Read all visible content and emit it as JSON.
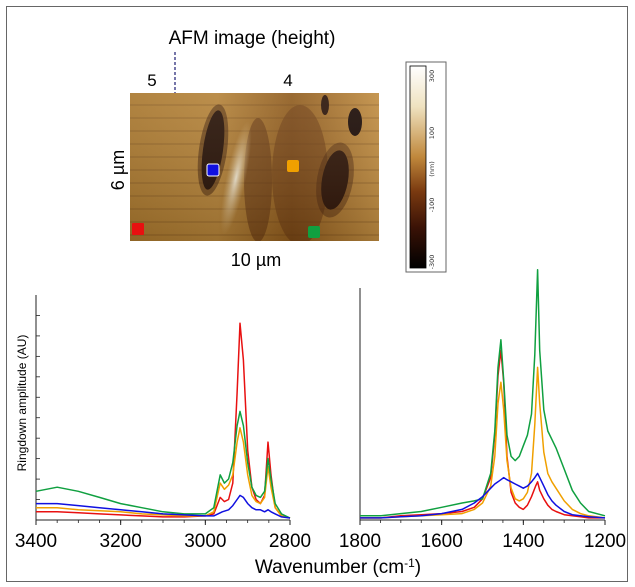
{
  "afm": {
    "title": "AFM image (height)",
    "region_left": "5",
    "region_right": "4",
    "height_label": "6 µm",
    "width_label": "10 µm",
    "colorbar": {
      "ticks": [
        "300",
        "100",
        "-100",
        "-300"
      ],
      "unit": "(nm)"
    },
    "markers": [
      {
        "name": "blue-marker",
        "color": "#1010e0"
      },
      {
        "name": "orange-marker",
        "color": "#f0a000"
      },
      {
        "name": "red-marker",
        "color": "#e81010"
      },
      {
        "name": "green-marker",
        "color": "#10a040"
      }
    ]
  },
  "chart_data": [
    {
      "type": "line",
      "title": "",
      "xlabel": "Wavenumber (cm-1)",
      "ylabel": "Ringdown amplitude (AU)",
      "xlim": [
        3400,
        2800
      ],
      "x_ticks": [
        "3400",
        "3200",
        "3000",
        "2800"
      ],
      "ylim": [
        0,
        100
      ],
      "series": [
        {
          "color": "#e81010",
          "x": [
            3400,
            3350,
            3300,
            3250,
            3200,
            3150,
            3100,
            3050,
            3000,
            2980,
            2965,
            2955,
            2945,
            2935,
            2925,
            2918,
            2910,
            2900,
            2890,
            2880,
            2870,
            2860,
            2852,
            2845,
            2835,
            2820,
            2800
          ],
          "y": [
            4,
            4,
            3.5,
            3,
            2.5,
            2,
            1.5,
            1.5,
            2,
            3,
            11,
            9,
            10,
            18,
            62,
            96,
            78,
            34,
            16,
            10,
            8,
            12,
            38,
            22,
            6,
            2,
            1
          ]
        },
        {
          "color": "#f0a000",
          "x": [
            3400,
            3350,
            3300,
            3250,
            3200,
            3150,
            3100,
            3050,
            3000,
            2980,
            2965,
            2955,
            2945,
            2935,
            2925,
            2918,
            2910,
            2900,
            2890,
            2880,
            2870,
            2860,
            2852,
            2845,
            2835,
            2820,
            2800
          ],
          "y": [
            6,
            6,
            5,
            4.5,
            4,
            3,
            2.5,
            2,
            2,
            4,
            18,
            15,
            17,
            22,
            38,
            45,
            38,
            22,
            12,
            9,
            8,
            11,
            26,
            16,
            6,
            2,
            1
          ]
        },
        {
          "color": "#10a040",
          "x": [
            3400,
            3350,
            3300,
            3250,
            3200,
            3150,
            3100,
            3050,
            3000,
            2980,
            2965,
            2955,
            2945,
            2935,
            2925,
            2918,
            2910,
            2900,
            2890,
            2880,
            2870,
            2860,
            2852,
            2845,
            2835,
            2820,
            2800
          ],
          "y": [
            14,
            16,
            14,
            11,
            8,
            6,
            4,
            3,
            3,
            6,
            22,
            18,
            20,
            28,
            46,
            53,
            46,
            28,
            16,
            12,
            11,
            14,
            30,
            20,
            8,
            3,
            1
          ]
        },
        {
          "color": "#1010e0",
          "x": [
            3400,
            3350,
            3300,
            3250,
            3200,
            3150,
            3100,
            3050,
            3000,
            2980,
            2960,
            2945,
            2935,
            2925,
            2918,
            2910,
            2900,
            2890,
            2880,
            2870,
            2860,
            2852,
            2845,
            2835,
            2820,
            2800
          ],
          "y": [
            8,
            8,
            7,
            6,
            5,
            4,
            3,
            2.5,
            2,
            2,
            4,
            5,
            7,
            10,
            12,
            11,
            8,
            6,
            5,
            5,
            4,
            5,
            4,
            3,
            1.5,
            1
          ]
        }
      ]
    },
    {
      "type": "line",
      "title": "",
      "xlabel": "Wavenumber (cm-1)",
      "ylabel": "",
      "xlim": [
        1800,
        1200
      ],
      "x_ticks": [
        "1800",
        "1600",
        "1400",
        "1200"
      ],
      "ylim": [
        0,
        100
      ],
      "series": [
        {
          "color": "#e81010",
          "x": [
            1800,
            1750,
            1700,
            1650,
            1600,
            1550,
            1520,
            1500,
            1480,
            1470,
            1462,
            1455,
            1448,
            1440,
            1430,
            1420,
            1410,
            1400,
            1390,
            1380,
            1370,
            1365,
            1360,
            1350,
            1340,
            1330,
            1320,
            1300,
            1280,
            1260,
            1240,
            1200
          ],
          "y": [
            1,
            1,
            2,
            2.5,
            3,
            4,
            6,
            10,
            20,
            40,
            68,
            80,
            65,
            30,
            13,
            8,
            6,
            5,
            7,
            11,
            16,
            18,
            14,
            10,
            7,
            5,
            4,
            2.5,
            2,
            1.5,
            1,
            1
          ]
        },
        {
          "color": "#f0a000",
          "x": [
            1800,
            1750,
            1700,
            1650,
            1600,
            1550,
            1520,
            1500,
            1480,
            1470,
            1462,
            1455,
            1448,
            1440,
            1430,
            1420,
            1410,
            1400,
            1390,
            1380,
            1372,
            1365,
            1360,
            1350,
            1340,
            1330,
            1320,
            1300,
            1280,
            1260,
            1240,
            1200
          ],
          "y": [
            1,
            1,
            1.5,
            2,
            2.5,
            3,
            5,
            8,
            16,
            30,
            55,
            65,
            52,
            28,
            15,
            10,
            9,
            10,
            13,
            22,
            45,
            72,
            55,
            32,
            22,
            18,
            15,
            9,
            5,
            3,
            2,
            1
          ]
        },
        {
          "color": "#10a040",
          "x": [
            1800,
            1750,
            1700,
            1650,
            1600,
            1550,
            1520,
            1500,
            1480,
            1470,
            1462,
            1455,
            1448,
            1440,
            1430,
            1420,
            1410,
            1400,
            1390,
            1380,
            1372,
            1365,
            1360,
            1350,
            1340,
            1330,
            1320,
            1300,
            1280,
            1260,
            1240,
            1200
          ],
          "y": [
            2,
            2,
            3,
            4,
            6,
            8,
            9,
            10,
            22,
            42,
            72,
            85,
            66,
            40,
            30,
            28,
            30,
            35,
            40,
            50,
            78,
            118,
            80,
            52,
            42,
            38,
            34,
            24,
            14,
            8,
            4,
            2
          ]
        },
        {
          "color": "#1010e0",
          "x": [
            1800,
            1750,
            1700,
            1650,
            1600,
            1550,
            1520,
            1500,
            1480,
            1470,
            1462,
            1455,
            1448,
            1440,
            1430,
            1420,
            1410,
            1400,
            1390,
            1380,
            1372,
            1365,
            1360,
            1350,
            1340,
            1330,
            1320,
            1300,
            1280,
            1260,
            1240,
            1200
          ],
          "y": [
            1,
            1,
            1.5,
            2,
            3,
            5,
            8,
            11,
            15,
            17,
            18,
            19,
            20,
            19,
            18,
            17,
            16,
            15,
            16,
            18,
            20,
            22,
            20,
            16,
            12,
            9,
            7,
            4,
            2.5,
            2,
            1.5,
            1
          ]
        }
      ]
    }
  ]
}
